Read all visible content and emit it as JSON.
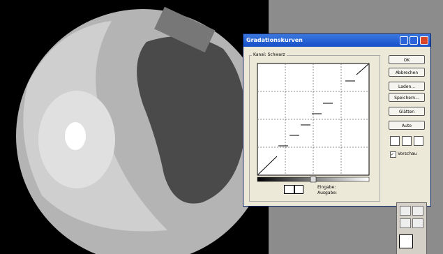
{
  "window": {
    "title": "Gradationskurven"
  },
  "channel_label": "Kanal: Schwarz",
  "buttons": [
    "OK",
    "Abbrechen",
    "Laden...",
    "Speichern...",
    "Glätten",
    "Auto"
  ],
  "preview_label": "Vorschau",
  "input_label": "Eingabe:",
  "output_label": "Ausgabe:"
}
